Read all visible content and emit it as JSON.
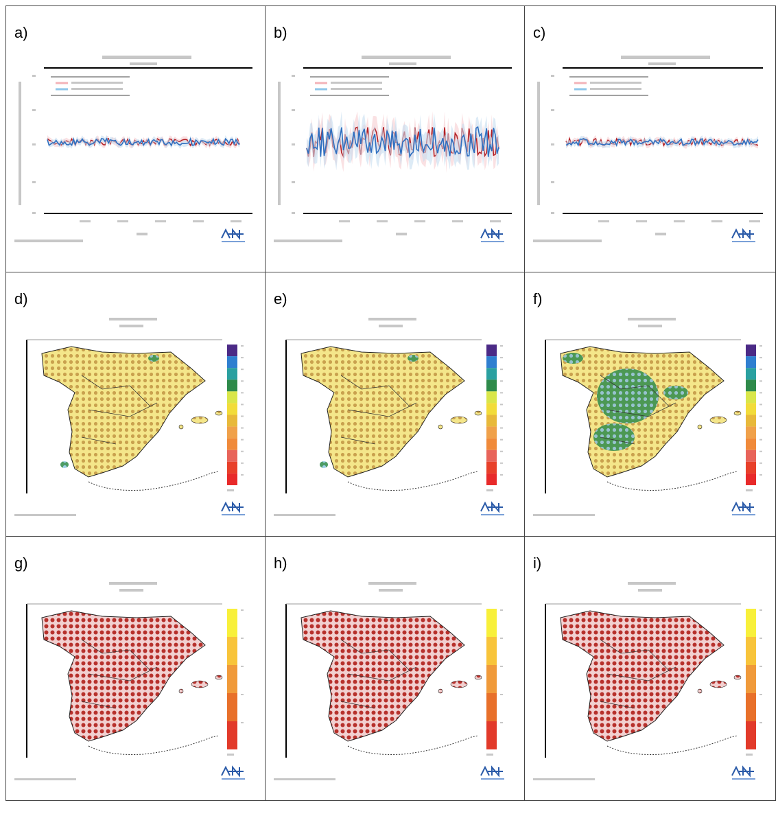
{
  "panels": [
    {
      "label": "a)"
    },
    {
      "label": "b)"
    },
    {
      "label": "c)"
    },
    {
      "label": "d)"
    },
    {
      "label": "e)"
    },
    {
      "label": "f)"
    },
    {
      "label": "g)"
    },
    {
      "label": "h)"
    },
    {
      "label": "i)"
    }
  ]
}
